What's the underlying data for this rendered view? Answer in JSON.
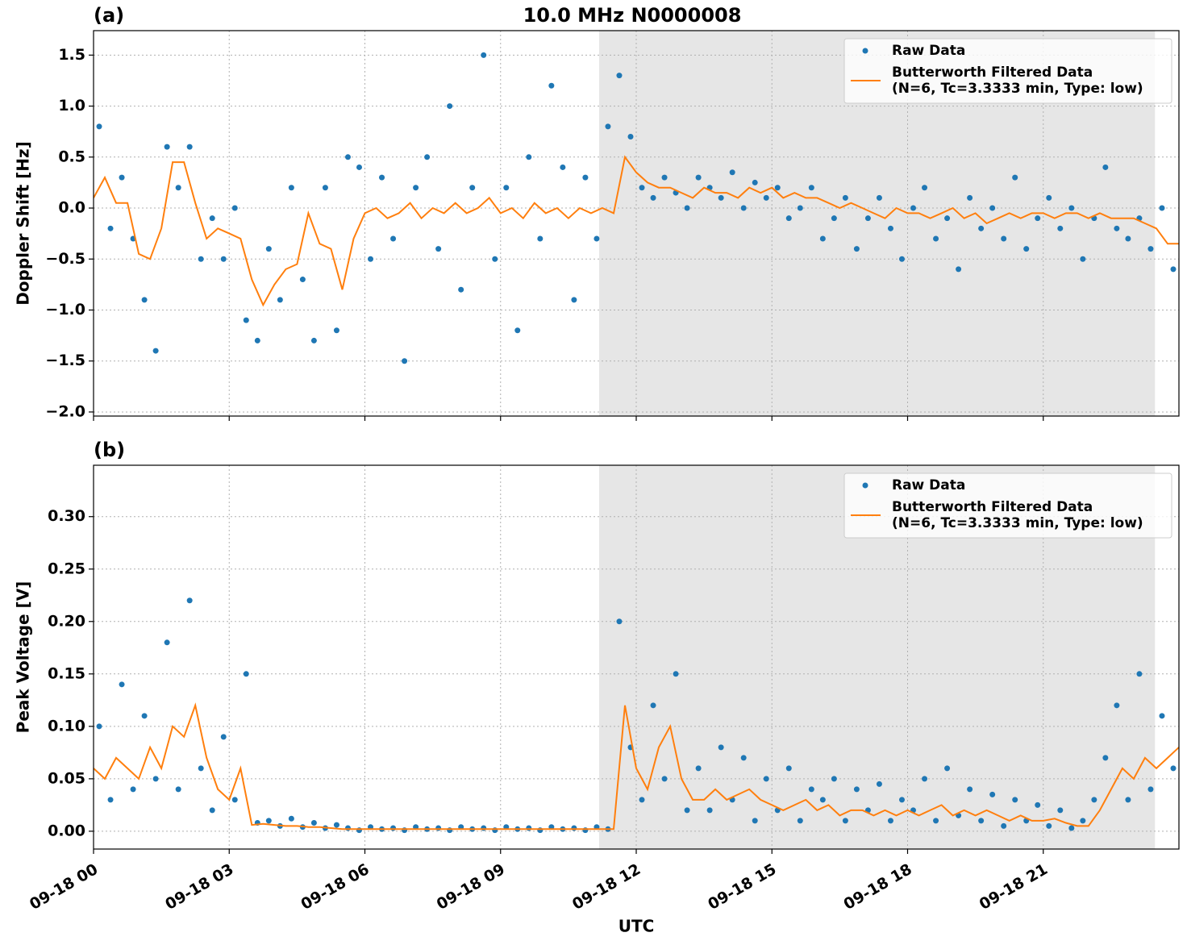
{
  "chart_data": [
    {
      "type": "scatter-line",
      "panel_label": "(a)",
      "title": "10.0 MHz N0000008",
      "ylabel": "Doppler Shift [Hz]",
      "xlim": [
        0,
        24
      ],
      "xticks": [
        0,
        3,
        6,
        9,
        12,
        15,
        18,
        21
      ],
      "ylim": [
        -2.04,
        1.74
      ],
      "yticks": [
        {
          "value": -2.0,
          "label": "−2.0"
        },
        {
          "value": -1.5,
          "label": "−1.5"
        },
        {
          "value": -1.0,
          "label": "−1.0"
        },
        {
          "value": -0.5,
          "label": "−0.5"
        },
        {
          "value": 0.0,
          "label": "0.0"
        },
        0.5,
        {
          "value": 1.0,
          "label": "1.0"
        },
        1.5
      ],
      "grid": true,
      "legend": "upper right",
      "shaded_span": [
        11.18,
        23.47
      ],
      "series": [
        {
          "name": "Raw Data",
          "color": "#1f77b4",
          "kind": "scatter",
          "x": [
            0.125,
            0.375,
            0.625,
            0.875,
            1.125,
            1.375,
            1.625,
            1.875,
            2.125,
            2.375,
            2.625,
            2.875,
            3.125,
            3.375,
            3.625,
            3.875,
            4.125,
            4.375,
            4.625,
            4.875,
            5.125,
            5.375,
            5.625,
            5.875,
            6.125,
            6.375,
            6.625,
            6.875,
            7.125,
            7.375,
            7.625,
            7.875,
            8.125,
            8.375,
            8.625,
            8.875,
            9.125,
            9.375,
            9.625,
            9.875,
            10.125,
            10.375,
            10.625,
            10.875,
            11.125,
            11.375,
            11.625,
            11.875,
            12.125,
            12.375,
            12.625,
            12.875,
            13.125,
            13.375,
            13.625,
            13.875,
            14.125,
            14.375,
            14.625,
            14.875,
            15.125,
            15.375,
            15.625,
            15.875,
            16.125,
            16.375,
            16.625,
            16.875,
            17.125,
            17.375,
            17.625,
            17.875,
            18.125,
            18.375,
            18.625,
            18.875,
            19.125,
            19.375,
            19.625,
            19.875,
            20.125,
            20.375,
            20.625,
            20.875,
            21.125,
            21.375,
            21.625,
            21.875,
            22.125,
            22.375,
            22.625,
            22.875,
            23.125,
            23.375,
            23.625,
            23.875
          ],
          "values": [
            0.8,
            -0.2,
            0.3,
            -0.3,
            -0.9,
            -1.4,
            0.6,
            0.2,
            0.6,
            -0.5,
            -0.1,
            -0.5,
            0.0,
            -1.1,
            -1.3,
            -0.4,
            -0.9,
            0.2,
            -0.7,
            -1.3,
            0.2,
            -1.2,
            0.5,
            0.4,
            -0.5,
            0.3,
            -0.3,
            -1.5,
            0.2,
            0.5,
            -0.4,
            1.0,
            -0.8,
            0.2,
            1.5,
            -0.5,
            0.2,
            -1.2,
            0.5,
            -0.3,
            1.2,
            0.4,
            -0.9,
            0.3,
            -0.3,
            0.8,
            1.3,
            0.7,
            0.2,
            0.1,
            0.3,
            0.15,
            0.0,
            0.3,
            0.2,
            0.1,
            0.35,
            0.0,
            0.25,
            0.1,
            0.2,
            -0.1,
            0.0,
            0.2,
            -0.3,
            -0.1,
            0.1,
            -0.4,
            -0.1,
            0.1,
            -0.2,
            -0.5,
            0.0,
            0.2,
            -0.3,
            -0.1,
            -0.6,
            0.1,
            -0.2,
            0.0,
            -0.3,
            0.3,
            -0.4,
            -0.1,
            0.1,
            -0.2,
            0.0,
            -0.5,
            -0.1,
            0.4,
            -0.2,
            -0.3,
            -0.1,
            -0.4,
            0.0,
            -0.6
          ]
        },
        {
          "name": "Butterworth Filtered Data\n(N=6, Tc=3.3333 min, Type: low)",
          "color": "#ff7f0e",
          "kind": "line",
          "x": [
            0,
            0.25,
            0.5,
            0.75,
            1,
            1.25,
            1.5,
            1.75,
            2,
            2.25,
            2.5,
            2.75,
            3,
            3.25,
            3.5,
            3.75,
            4,
            4.25,
            4.5,
            4.75,
            5,
            5.25,
            5.5,
            5.75,
            6,
            6.25,
            6.5,
            6.75,
            7,
            7.25,
            7.5,
            7.75,
            8,
            8.25,
            8.5,
            8.75,
            9,
            9.25,
            9.5,
            9.75,
            10,
            10.25,
            10.5,
            10.75,
            11,
            11.25,
            11.5,
            11.75,
            12,
            12.25,
            12.5,
            12.75,
            13,
            13.25,
            13.5,
            13.75,
            14,
            14.25,
            14.5,
            14.75,
            15,
            15.25,
            15.5,
            15.75,
            16,
            16.25,
            16.5,
            16.75,
            17,
            17.25,
            17.5,
            17.75,
            18,
            18.25,
            18.5,
            18.75,
            19,
            19.25,
            19.5,
            19.75,
            20,
            20.25,
            20.5,
            20.75,
            21,
            21.25,
            21.5,
            21.75,
            22,
            22.25,
            22.5,
            22.75,
            23,
            23.25,
            23.5,
            23.75,
            24
          ],
          "values": [
            0.1,
            0.3,
            0.05,
            0.05,
            -0.45,
            -0.5,
            -0.2,
            0.45,
            0.45,
            0.05,
            -0.3,
            -0.2,
            -0.25,
            -0.3,
            -0.7,
            -0.95,
            -0.75,
            -0.6,
            -0.55,
            -0.05,
            -0.35,
            -0.4,
            -0.8,
            -0.3,
            -0.05,
            0.0,
            -0.1,
            -0.05,
            0.05,
            -0.1,
            0.0,
            -0.05,
            0.05,
            -0.05,
            0.0,
            0.1,
            -0.05,
            0.0,
            -0.1,
            0.05,
            -0.05,
            0.0,
            -0.1,
            0.0,
            -0.05,
            0.0,
            -0.05,
            0.5,
            0.35,
            0.25,
            0.2,
            0.2,
            0.15,
            0.1,
            0.2,
            0.15,
            0.15,
            0.1,
            0.2,
            0.15,
            0.2,
            0.1,
            0.15,
            0.1,
            0.1,
            0.05,
            0.0,
            0.05,
            0.0,
            -0.05,
            -0.1,
            0.0,
            -0.05,
            -0.05,
            -0.1,
            -0.05,
            0.0,
            -0.1,
            -0.05,
            -0.15,
            -0.1,
            -0.05,
            -0.1,
            -0.05,
            -0.05,
            -0.1,
            -0.05,
            -0.05,
            -0.1,
            -0.05,
            -0.1,
            -0.1,
            -0.1,
            -0.15,
            -0.2,
            -0.35,
            -0.35
          ]
        }
      ]
    },
    {
      "type": "scatter-line",
      "panel_label": "(b)",
      "ylabel": "Peak Voltage [V]",
      "xlabel": "UTC",
      "xlim": [
        0,
        24
      ],
      "xticks": [
        {
          "value": 0,
          "label": "09-18 00"
        },
        {
          "value": 3,
          "label": "09-18 03"
        },
        {
          "value": 6,
          "label": "09-18 06"
        },
        {
          "value": 9,
          "label": "09-18 09"
        },
        {
          "value": 12,
          "label": "09-18 12"
        },
        {
          "value": 15,
          "label": "09-18 15"
        },
        {
          "value": 18,
          "label": "09-18 18"
        },
        {
          "value": 21,
          "label": "09-18 21"
        }
      ],
      "ylim": [
        -0.017,
        0.349
      ],
      "yticks": [
        {
          "value": 0,
          "label": "0.00"
        },
        0.05,
        {
          "value": 0.1,
          "label": "0.10"
        },
        0.15,
        {
          "value": 0.2,
          "label": "0.20"
        },
        0.25,
        {
          "value": 0.3,
          "label": "0.30"
        }
      ],
      "grid": true,
      "legend": "upper right",
      "shaded_span": [
        11.18,
        23.47
      ],
      "series": [
        {
          "name": "Raw Data",
          "color": "#1f77b4",
          "kind": "scatter",
          "x": [
            0.125,
            0.375,
            0.625,
            0.875,
            1.125,
            1.375,
            1.625,
            1.875,
            2.125,
            2.375,
            2.625,
            2.875,
            3.125,
            3.375,
            3.625,
            3.875,
            4.125,
            4.375,
            4.625,
            4.875,
            5.125,
            5.375,
            5.625,
            5.875,
            6.125,
            6.375,
            6.625,
            6.875,
            7.125,
            7.375,
            7.625,
            7.875,
            8.125,
            8.375,
            8.625,
            8.875,
            9.125,
            9.375,
            9.625,
            9.875,
            10.125,
            10.375,
            10.625,
            10.875,
            11.125,
            11.375,
            11.625,
            11.875,
            12.125,
            12.375,
            12.625,
            12.875,
            13.125,
            13.375,
            13.625,
            13.875,
            14.125,
            14.375,
            14.625,
            14.875,
            15.125,
            15.375,
            15.625,
            15.875,
            16.125,
            16.375,
            16.625,
            16.875,
            17.125,
            17.375,
            17.625,
            17.875,
            18.125,
            18.375,
            18.625,
            18.875,
            19.125,
            19.375,
            19.625,
            19.875,
            20.125,
            20.375,
            20.625,
            20.875,
            21.125,
            21.375,
            21.625,
            21.875,
            22.125,
            22.375,
            22.625,
            22.875,
            23.125,
            23.375,
            23.625,
            23.875
          ],
          "values": [
            0.1,
            0.03,
            0.14,
            0.04,
            0.11,
            0.05,
            0.18,
            0.04,
            0.22,
            0.06,
            0.02,
            0.09,
            0.03,
            0.15,
            0.008,
            0.01,
            0.005,
            0.012,
            0.004,
            0.008,
            0.003,
            0.006,
            0.003,
            0.001,
            0.004,
            0.002,
            0.003,
            0.001,
            0.004,
            0.002,
            0.003,
            0.001,
            0.004,
            0.002,
            0.003,
            0.001,
            0.004,
            0.002,
            0.003,
            0.001,
            0.004,
            0.002,
            0.003,
            0.001,
            0.004,
            0.002,
            0.2,
            0.08,
            0.03,
            0.12,
            0.05,
            0.15,
            0.02,
            0.06,
            0.02,
            0.08,
            0.03,
            0.07,
            0.01,
            0.05,
            0.02,
            0.06,
            0.01,
            0.04,
            0.03,
            0.05,
            0.01,
            0.04,
            0.02,
            0.045,
            0.01,
            0.03,
            0.02,
            0.05,
            0.01,
            0.06,
            0.015,
            0.04,
            0.01,
            0.035,
            0.005,
            0.03,
            0.01,
            0.025,
            0.005,
            0.02,
            0.003,
            0.01,
            0.03,
            0.07,
            0.12,
            0.03,
            0.15,
            0.04,
            0.11,
            0.06
          ]
        },
        {
          "name": "Butterworth Filtered Data\n(N=6, Tc=3.3333 min, Type: low)",
          "color": "#ff7f0e",
          "kind": "line",
          "x": [
            0,
            0.25,
            0.5,
            0.75,
            1,
            1.25,
            1.5,
            1.75,
            2,
            2.25,
            2.5,
            2.75,
            3,
            3.25,
            3.5,
            3.75,
            4,
            4.25,
            4.5,
            4.75,
            5,
            5.25,
            5.5,
            5.75,
            6,
            6.25,
            6.5,
            6.75,
            7,
            7.25,
            7.5,
            7.75,
            8,
            8.25,
            8.5,
            8.75,
            9,
            9.25,
            9.5,
            9.75,
            10,
            10.25,
            10.5,
            10.75,
            11,
            11.25,
            11.5,
            11.75,
            12,
            12.25,
            12.5,
            12.75,
            13,
            13.25,
            13.5,
            13.75,
            14,
            14.25,
            14.5,
            14.75,
            15,
            15.25,
            15.5,
            15.75,
            16,
            16.25,
            16.5,
            16.75,
            17,
            17.25,
            17.5,
            17.75,
            18,
            18.25,
            18.5,
            18.75,
            19,
            19.25,
            19.5,
            19.75,
            20,
            20.25,
            20.5,
            20.75,
            21,
            21.25,
            21.5,
            21.75,
            22,
            22.25,
            22.5,
            22.75,
            23,
            23.25,
            23.5,
            23.75,
            24
          ],
          "values": [
            0.06,
            0.05,
            0.07,
            0.06,
            0.05,
            0.08,
            0.06,
            0.1,
            0.09,
            0.12,
            0.07,
            0.04,
            0.03,
            0.06,
            0.006,
            0.007,
            0.006,
            0.005,
            0.005,
            0.004,
            0.004,
            0.003,
            0.002,
            0.002,
            0.002,
            0.002,
            0.002,
            0.002,
            0.002,
            0.002,
            0.002,
            0.002,
            0.002,
            0.002,
            0.002,
            0.002,
            0.002,
            0.002,
            0.002,
            0.002,
            0.002,
            0.002,
            0.002,
            0.002,
            0.002,
            0.002,
            0.002,
            0.12,
            0.06,
            0.04,
            0.08,
            0.1,
            0.05,
            0.03,
            0.03,
            0.04,
            0.03,
            0.035,
            0.04,
            0.03,
            0.025,
            0.02,
            0.025,
            0.03,
            0.02,
            0.025,
            0.015,
            0.02,
            0.02,
            0.015,
            0.02,
            0.015,
            0.02,
            0.015,
            0.02,
            0.025,
            0.015,
            0.02,
            0.015,
            0.02,
            0.015,
            0.01,
            0.015,
            0.01,
            0.01,
            0.012,
            0.008,
            0.005,
            0.005,
            0.02,
            0.04,
            0.06,
            0.05,
            0.07,
            0.06,
            0.07,
            0.08
          ]
        }
      ]
    }
  ]
}
